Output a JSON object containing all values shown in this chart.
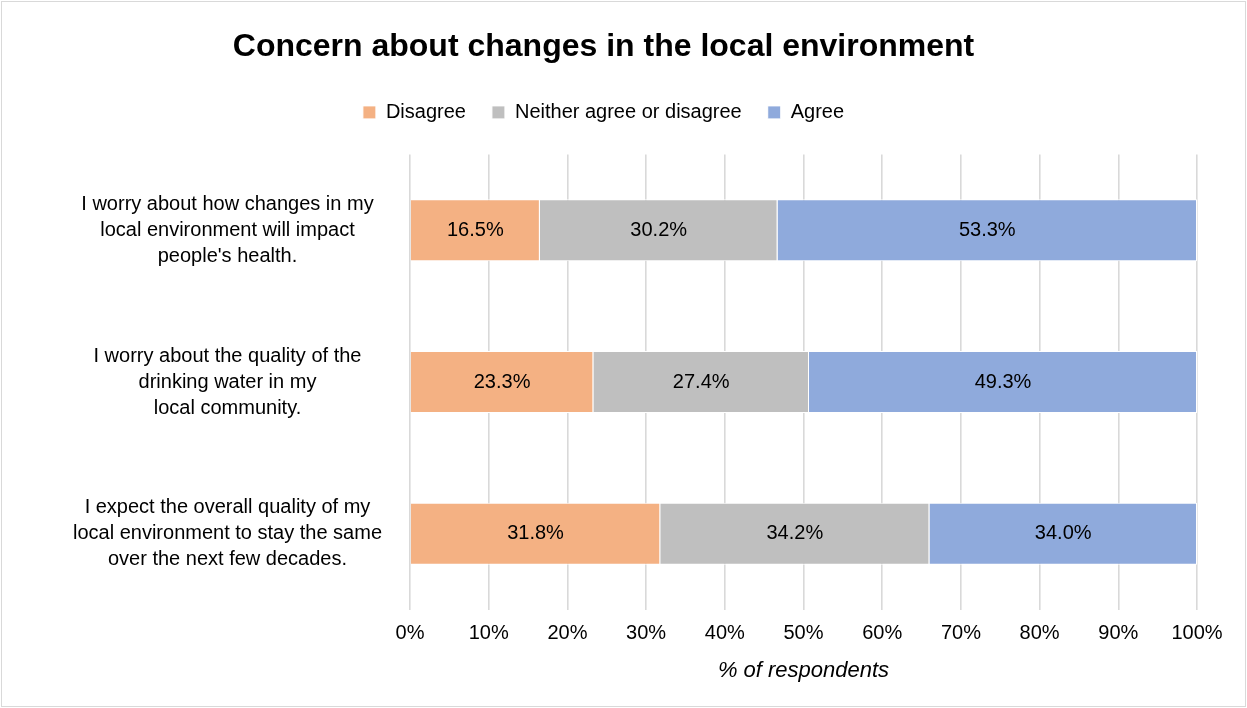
{
  "chart_data": {
    "type": "bar",
    "orientation": "horizontal",
    "stacked": true,
    "title": "Concern about changes in the local environment",
    "xlabel": "% of respondents",
    "categories": [
      "I worry about how changes in my\nlocal environment will impact\npeople's health.",
      "I worry about the quality of the\ndrinking water in my\nlocal community.",
      "I expect the overall quality of my\nlocal environment to stay the same\nover the next few decades."
    ],
    "series": [
      {
        "name": "Disagree",
        "color": "#f4b183",
        "values": [
          16.5,
          23.3,
          31.8
        ],
        "value_labels": [
          "16.5%",
          "23.3%",
          "31.8%"
        ]
      },
      {
        "name": "Neither agree or disagree",
        "color": "#bfbfbf",
        "values": [
          30.2,
          27.4,
          34.2
        ],
        "value_labels": [
          "30.2%",
          "27.4%",
          "34.2%"
        ]
      },
      {
        "name": "Agree",
        "color": "#8faadc",
        "values": [
          53.3,
          49.3,
          34.0
        ],
        "value_labels": [
          "53.3%",
          "49.3%",
          "34.0%"
        ]
      }
    ],
    "xlim": [
      0,
      100
    ],
    "xticks": [
      {
        "value": 0,
        "label": "0%"
      },
      {
        "value": 10,
        "label": "10%"
      },
      {
        "value": 20,
        "label": "20%"
      },
      {
        "value": 30,
        "label": "30%"
      },
      {
        "value": 40,
        "label": "40%"
      },
      {
        "value": 50,
        "label": "50%"
      },
      {
        "value": 60,
        "label": "60%"
      },
      {
        "value": 70,
        "label": "70%"
      },
      {
        "value": 80,
        "label": "80%"
      },
      {
        "value": 90,
        "label": "90%"
      },
      {
        "value": 100,
        "label": "100%"
      }
    ],
    "grid": "x",
    "legend": "top"
  }
}
